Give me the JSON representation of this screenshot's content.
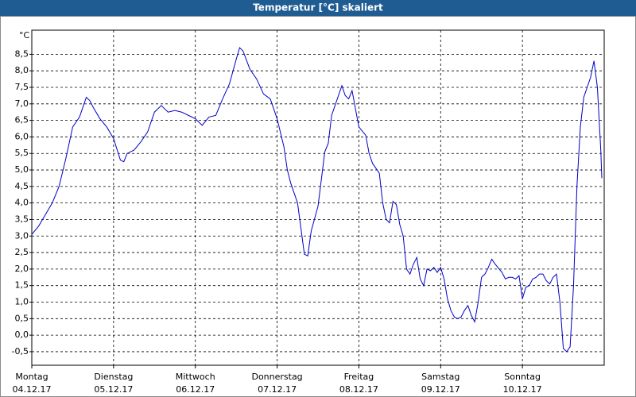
{
  "chart_data": {
    "type": "line",
    "title": "Temperatur [°C] skaliert",
    "y_unit": "°C",
    "xlim": [
      0,
      168
    ],
    "ylim": [
      -0.91,
      9.23
    ],
    "xticks": [
      {
        "value": 0,
        "label": "Montag",
        "date": "04.12.17"
      },
      {
        "value": 24,
        "label": "Dienstag",
        "date": "05.12.17"
      },
      {
        "value": 48,
        "label": "Mittwoch",
        "date": "06.12.17"
      },
      {
        "value": 72,
        "label": "Donnerstag",
        "date": "07.12.17"
      },
      {
        "value": 96,
        "label": "Freitag",
        "date": "08.12.17"
      },
      {
        "value": 120,
        "label": "Samstag",
        "date": "09.12.17"
      },
      {
        "value": 144,
        "label": "Sonntag",
        "date": "10.12.17"
      }
    ],
    "yticks": [
      {
        "value": -0.5,
        "label": "-0,5"
      },
      {
        "value": 0,
        "label": "0,0"
      },
      {
        "value": 0.5,
        "label": "0,5"
      },
      {
        "value": 1,
        "label": "1,0"
      },
      {
        "value": 1.5,
        "label": "1,5"
      },
      {
        "value": 2,
        "label": "2,0"
      },
      {
        "value": 2.5,
        "label": "2,5"
      },
      {
        "value": 3,
        "label": "3,0"
      },
      {
        "value": 3.5,
        "label": "3,5"
      },
      {
        "value": 4,
        "label": "4,0"
      },
      {
        "value": 4.5,
        "label": "4,5"
      },
      {
        "value": 5,
        "label": "5,0"
      },
      {
        "value": 5.5,
        "label": "5,5"
      },
      {
        "value": 6,
        "label": "6,0"
      },
      {
        "value": 6.5,
        "label": "6,5"
      },
      {
        "value": 7,
        "label": "7,0"
      },
      {
        "value": 7.5,
        "label": "7,5"
      },
      {
        "value": 8,
        "label": "8,0"
      },
      {
        "value": 8.5,
        "label": "8,5"
      }
    ],
    "grid": true,
    "x": [
      0,
      2,
      4,
      6,
      8,
      10,
      12,
      14,
      16,
      17,
      18,
      20,
      22,
      24,
      26,
      27,
      28,
      30,
      32,
      34,
      36,
      38,
      40,
      42,
      44,
      46,
      48,
      50,
      52,
      54,
      56,
      58,
      60,
      61,
      62,
      64,
      66,
      68,
      70,
      72,
      74,
      75,
      76,
      78,
      80,
      81,
      82,
      84,
      86,
      87,
      88,
      90,
      91,
      92,
      93,
      94,
      96,
      98,
      99,
      100,
      102,
      103,
      104,
      105,
      106,
      107,
      108,
      109,
      110,
      111,
      112,
      113,
      114,
      115,
      116,
      117,
      118,
      119,
      120,
      121,
      122,
      123,
      124,
      125,
      126,
      127,
      128,
      129,
      130,
      131,
      132,
      133,
      134,
      135,
      136,
      138,
      139,
      140,
      141,
      142,
      143,
      144,
      145,
      146,
      147,
      148,
      149,
      150,
      151,
      152,
      153,
      154,
      155,
      156,
      157,
      158,
      159,
      160,
      161,
      162,
      163,
      164,
      165,
      166,
      167,
      167.3
    ],
    "series": [
      {
        "name": "Temperatur",
        "color": "#0000c8",
        "values": [
          3.05,
          3.3,
          3.65,
          4.0,
          4.5,
          5.35,
          6.3,
          6.6,
          7.2,
          7.1,
          6.9,
          6.55,
          6.3,
          5.95,
          5.3,
          5.25,
          5.5,
          5.6,
          5.85,
          6.15,
          6.75,
          6.95,
          6.75,
          6.8,
          6.75,
          6.65,
          6.55,
          6.35,
          6.6,
          6.65,
          7.15,
          7.6,
          8.35,
          8.7,
          8.6,
          8.05,
          7.75,
          7.3,
          7.15,
          6.55,
          5.7,
          5.0,
          4.6,
          4.0,
          2.45,
          2.4,
          3.15,
          3.9,
          5.55,
          5.8,
          6.65,
          7.25,
          7.55,
          7.25,
          7.15,
          7.4,
          6.3,
          6.05,
          5.5,
          5.2,
          4.9,
          4.0,
          3.5,
          3.4,
          4.05,
          3.95,
          3.35,
          3.0,
          2.0,
          1.85,
          2.15,
          2.35,
          1.7,
          1.5,
          2.0,
          1.95,
          2.05,
          1.9,
          2.05,
          1.7,
          1.1,
          0.75,
          0.55,
          0.5,
          0.55,
          0.75,
          0.9,
          0.6,
          0.4,
          1.0,
          1.75,
          1.85,
          2.05,
          2.3,
          2.15,
          1.9,
          1.7,
          1.75,
          1.75,
          1.7,
          1.8,
          1.1,
          1.45,
          1.5,
          1.7,
          1.75,
          1.85,
          1.85,
          1.65,
          1.55,
          1.75,
          1.85,
          1.0,
          -0.4,
          -0.5,
          -0.35,
          1.5,
          4.5,
          6.3,
          7.2,
          7.5,
          7.8,
          8.3,
          7.5,
          5.6,
          4.75
        ]
      }
    ]
  }
}
